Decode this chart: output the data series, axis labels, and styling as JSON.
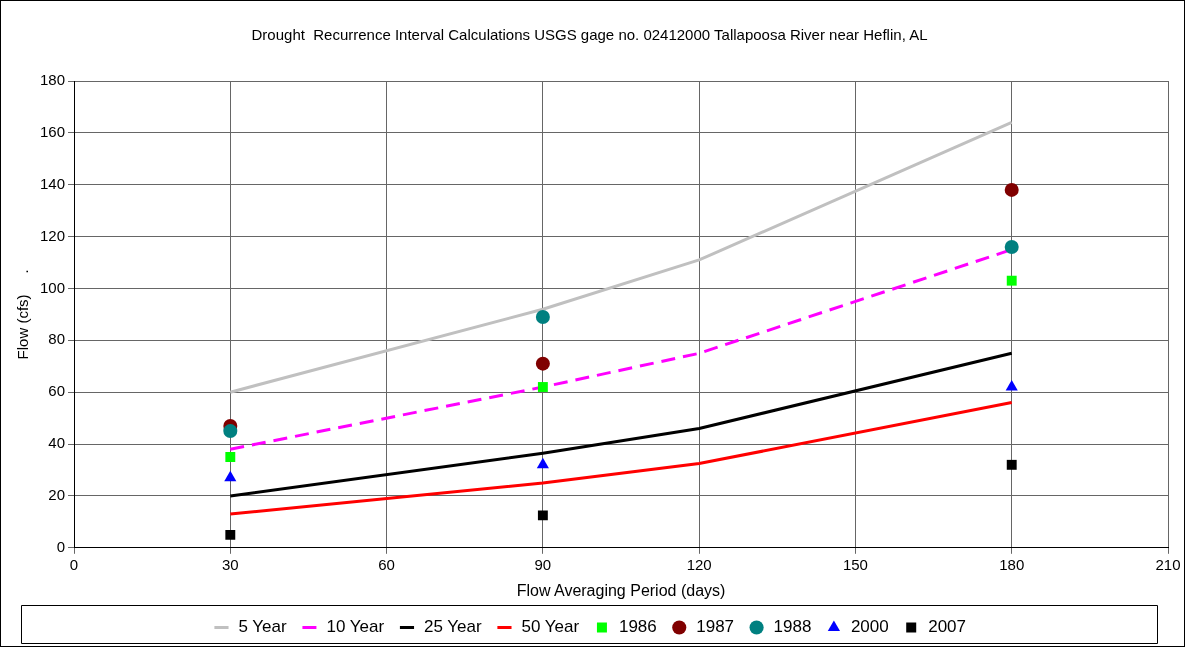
{
  "chart_data": {
    "type": "line",
    "title": "Drought  Recurrence Interval Calculations USGS gage no. 02412000 Tallapoosa River near Heflin, AL",
    "xlabel": "Flow Averaging Period (days)",
    "ylabel": "Flow (cfs)     .",
    "xlim": [
      0,
      210
    ],
    "xticks": [
      0,
      30,
      60,
      90,
      120,
      150,
      180,
      210
    ],
    "ylim": [
      0,
      180
    ],
    "yticks": [
      0,
      20,
      40,
      60,
      80,
      100,
      120,
      140,
      160,
      180
    ],
    "grid": true,
    "legend": "bottom",
    "series": [
      {
        "name": "5 Year",
        "marker": "none",
        "line_style": "solid",
        "color": "#c0c0c0",
        "x": [
          30,
          90,
          120,
          180
        ],
        "values": [
          60,
          92,
          111,
          164
        ]
      },
      {
        "name": "10 Year",
        "marker": "none",
        "line_style": "dashed",
        "color": "#ff00ff",
        "x": [
          30,
          90,
          120,
          180
        ],
        "values": [
          38,
          62,
          75,
          115
        ]
      },
      {
        "name": "25 Year",
        "marker": "none",
        "line_style": "solid",
        "color": "#000000",
        "x": [
          30,
          90,
          120,
          180
        ],
        "values": [
          20,
          36.5,
          46,
          75
        ]
      },
      {
        "name": "50 Year",
        "marker": "none",
        "line_style": "solid",
        "color": "#ff0000",
        "x": [
          30,
          90,
          120,
          180
        ],
        "values": [
          13,
          25,
          32.5,
          56
        ]
      },
      {
        "name": "1986",
        "type": "scatter",
        "marker": "square",
        "color": "#00ff00",
        "x": [
          30,
          90,
          180
        ],
        "values": [
          35,
          62,
          103
        ]
      },
      {
        "name": "1987",
        "type": "scatter",
        "marker": "circle",
        "color": "#800000",
        "x": [
          30,
          90,
          180
        ],
        "values": [
          47,
          71,
          138
        ]
      },
      {
        "name": "1988",
        "type": "scatter",
        "marker": "circle",
        "color": "#008080",
        "x": [
          30,
          90,
          180
        ],
        "values": [
          45,
          89,
          116
        ]
      },
      {
        "name": "2000",
        "type": "scatter",
        "marker": "triangle",
        "color": "#0000ff",
        "x": [
          30,
          90,
          180
        ],
        "values": [
          27,
          32,
          62
        ]
      },
      {
        "name": "2007",
        "type": "scatter",
        "marker": "square",
        "color": "#000000",
        "x": [
          30,
          90,
          180
        ],
        "values": [
          5,
          12.5,
          32
        ]
      }
    ]
  }
}
